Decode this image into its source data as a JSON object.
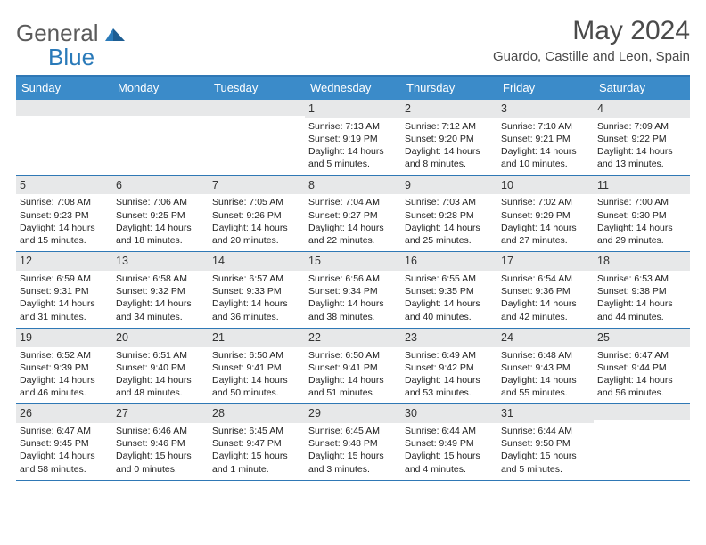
{
  "brand": {
    "part1": "General",
    "part2": "Blue"
  },
  "title": "May 2024",
  "location": "Guardo, Castille and Leon, Spain",
  "weekdays": [
    "Sunday",
    "Monday",
    "Tuesday",
    "Wednesday",
    "Thursday",
    "Friday",
    "Saturday"
  ],
  "colors": {
    "header_bar": "#3b8bc9",
    "border": "#2f78b5",
    "daynum_bg": "#e7e8e9",
    "logo_gray": "#5b5b5b",
    "logo_blue": "#2a7ab9"
  },
  "weeks": [
    [
      {
        "n": "",
        "lines": []
      },
      {
        "n": "",
        "lines": []
      },
      {
        "n": "",
        "lines": []
      },
      {
        "n": "1",
        "lines": [
          "Sunrise: 7:13 AM",
          "Sunset: 9:19 PM",
          "Daylight: 14 hours and 5 minutes."
        ]
      },
      {
        "n": "2",
        "lines": [
          "Sunrise: 7:12 AM",
          "Sunset: 9:20 PM",
          "Daylight: 14 hours and 8 minutes."
        ]
      },
      {
        "n": "3",
        "lines": [
          "Sunrise: 7:10 AM",
          "Sunset: 9:21 PM",
          "Daylight: 14 hours and 10 minutes."
        ]
      },
      {
        "n": "4",
        "lines": [
          "Sunrise: 7:09 AM",
          "Sunset: 9:22 PM",
          "Daylight: 14 hours and 13 minutes."
        ]
      }
    ],
    [
      {
        "n": "5",
        "lines": [
          "Sunrise: 7:08 AM",
          "Sunset: 9:23 PM",
          "Daylight: 14 hours and 15 minutes."
        ]
      },
      {
        "n": "6",
        "lines": [
          "Sunrise: 7:06 AM",
          "Sunset: 9:25 PM",
          "Daylight: 14 hours and 18 minutes."
        ]
      },
      {
        "n": "7",
        "lines": [
          "Sunrise: 7:05 AM",
          "Sunset: 9:26 PM",
          "Daylight: 14 hours and 20 minutes."
        ]
      },
      {
        "n": "8",
        "lines": [
          "Sunrise: 7:04 AM",
          "Sunset: 9:27 PM",
          "Daylight: 14 hours and 22 minutes."
        ]
      },
      {
        "n": "9",
        "lines": [
          "Sunrise: 7:03 AM",
          "Sunset: 9:28 PM",
          "Daylight: 14 hours and 25 minutes."
        ]
      },
      {
        "n": "10",
        "lines": [
          "Sunrise: 7:02 AM",
          "Sunset: 9:29 PM",
          "Daylight: 14 hours and 27 minutes."
        ]
      },
      {
        "n": "11",
        "lines": [
          "Sunrise: 7:00 AM",
          "Sunset: 9:30 PM",
          "Daylight: 14 hours and 29 minutes."
        ]
      }
    ],
    [
      {
        "n": "12",
        "lines": [
          "Sunrise: 6:59 AM",
          "Sunset: 9:31 PM",
          "Daylight: 14 hours and 31 minutes."
        ]
      },
      {
        "n": "13",
        "lines": [
          "Sunrise: 6:58 AM",
          "Sunset: 9:32 PM",
          "Daylight: 14 hours and 34 minutes."
        ]
      },
      {
        "n": "14",
        "lines": [
          "Sunrise: 6:57 AM",
          "Sunset: 9:33 PM",
          "Daylight: 14 hours and 36 minutes."
        ]
      },
      {
        "n": "15",
        "lines": [
          "Sunrise: 6:56 AM",
          "Sunset: 9:34 PM",
          "Daylight: 14 hours and 38 minutes."
        ]
      },
      {
        "n": "16",
        "lines": [
          "Sunrise: 6:55 AM",
          "Sunset: 9:35 PM",
          "Daylight: 14 hours and 40 minutes."
        ]
      },
      {
        "n": "17",
        "lines": [
          "Sunrise: 6:54 AM",
          "Sunset: 9:36 PM",
          "Daylight: 14 hours and 42 minutes."
        ]
      },
      {
        "n": "18",
        "lines": [
          "Sunrise: 6:53 AM",
          "Sunset: 9:38 PM",
          "Daylight: 14 hours and 44 minutes."
        ]
      }
    ],
    [
      {
        "n": "19",
        "lines": [
          "Sunrise: 6:52 AM",
          "Sunset: 9:39 PM",
          "Daylight: 14 hours and 46 minutes."
        ]
      },
      {
        "n": "20",
        "lines": [
          "Sunrise: 6:51 AM",
          "Sunset: 9:40 PM",
          "Daylight: 14 hours and 48 minutes."
        ]
      },
      {
        "n": "21",
        "lines": [
          "Sunrise: 6:50 AM",
          "Sunset: 9:41 PM",
          "Daylight: 14 hours and 50 minutes."
        ]
      },
      {
        "n": "22",
        "lines": [
          "Sunrise: 6:50 AM",
          "Sunset: 9:41 PM",
          "Daylight: 14 hours and 51 minutes."
        ]
      },
      {
        "n": "23",
        "lines": [
          "Sunrise: 6:49 AM",
          "Sunset: 9:42 PM",
          "Daylight: 14 hours and 53 minutes."
        ]
      },
      {
        "n": "24",
        "lines": [
          "Sunrise: 6:48 AM",
          "Sunset: 9:43 PM",
          "Daylight: 14 hours and 55 minutes."
        ]
      },
      {
        "n": "25",
        "lines": [
          "Sunrise: 6:47 AM",
          "Sunset: 9:44 PM",
          "Daylight: 14 hours and 56 minutes."
        ]
      }
    ],
    [
      {
        "n": "26",
        "lines": [
          "Sunrise: 6:47 AM",
          "Sunset: 9:45 PM",
          "Daylight: 14 hours and 58 minutes."
        ]
      },
      {
        "n": "27",
        "lines": [
          "Sunrise: 6:46 AM",
          "Sunset: 9:46 PM",
          "Daylight: 15 hours and 0 minutes."
        ]
      },
      {
        "n": "28",
        "lines": [
          "Sunrise: 6:45 AM",
          "Sunset: 9:47 PM",
          "Daylight: 15 hours and 1 minute."
        ]
      },
      {
        "n": "29",
        "lines": [
          "Sunrise: 6:45 AM",
          "Sunset: 9:48 PM",
          "Daylight: 15 hours and 3 minutes."
        ]
      },
      {
        "n": "30",
        "lines": [
          "Sunrise: 6:44 AM",
          "Sunset: 9:49 PM",
          "Daylight: 15 hours and 4 minutes."
        ]
      },
      {
        "n": "31",
        "lines": [
          "Sunrise: 6:44 AM",
          "Sunset: 9:50 PM",
          "Daylight: 15 hours and 5 minutes."
        ]
      },
      {
        "n": "",
        "lines": []
      }
    ]
  ]
}
